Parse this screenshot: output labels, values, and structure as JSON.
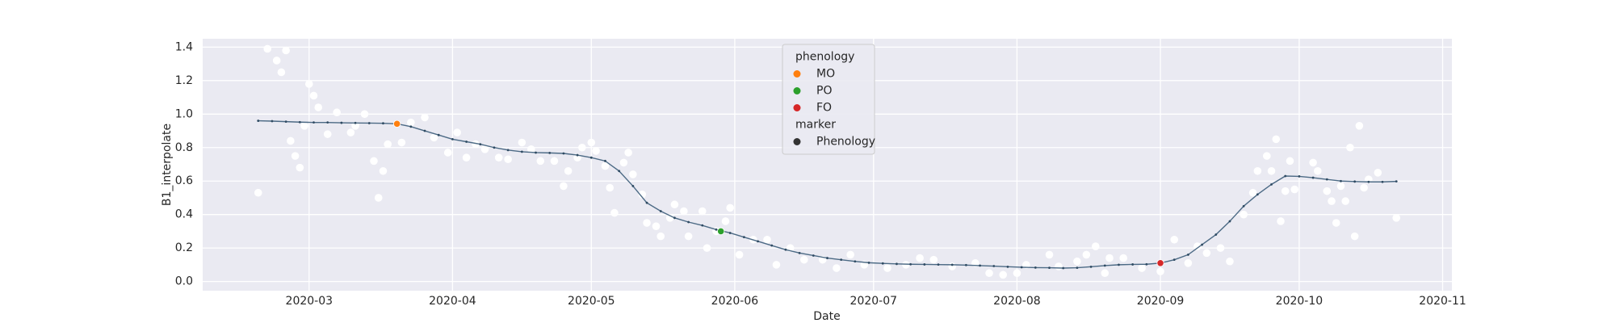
{
  "chart_data": {
    "type": "scatter",
    "x_label": "Date",
    "y_label": "B1_interpolate",
    "xlim": [
      "2020-02-07",
      "2020-11-03"
    ],
    "xticks": [
      {
        "value": "2020-03-01",
        "label": "2020-03"
      },
      {
        "value": "2020-04-01",
        "label": "2020-04"
      },
      {
        "value": "2020-05-01",
        "label": "2020-05"
      },
      {
        "value": "2020-06-01",
        "label": "2020-06"
      },
      {
        "value": "2020-07-01",
        "label": "2020-07"
      },
      {
        "value": "2020-08-01",
        "label": "2020-08"
      },
      {
        "value": "2020-09-01",
        "label": "2020-09"
      },
      {
        "value": "2020-10-01",
        "label": "2020-10"
      },
      {
        "value": "2020-11-01",
        "label": "2020-11"
      }
    ],
    "ylim": [
      -0.055,
      1.45
    ],
    "yticks": [
      {
        "value": 0,
        "label": "0.0"
      },
      0.2,
      0.4,
      0.6,
      0.8,
      {
        "value": 1,
        "label": "1.0"
      },
      1.2,
      1.4
    ],
    "grid": true,
    "legend": {
      "loc": "upper center",
      "hue_title": "phenology",
      "style_title": "marker",
      "style_entries": [
        {
          "label": "Phenology",
          "color": "#333333"
        }
      ]
    },
    "series": [
      {
        "kind": "scatter",
        "color": "#ffffff",
        "x": [
          "2020-02-19",
          "2020-02-21",
          "2020-02-23",
          "2020-02-24",
          "2020-02-25",
          "2020-02-26",
          "2020-02-27",
          "2020-02-28",
          "2020-02-29",
          "2020-03-01",
          "2020-03-02",
          "2020-03-03",
          "2020-03-05",
          "2020-03-07",
          "2020-03-10",
          "2020-03-11",
          "2020-03-13",
          "2020-03-15",
          "2020-03-16",
          "2020-03-17",
          "2020-03-18",
          "2020-03-21",
          "2020-03-23",
          "2020-03-26",
          "2020-03-28",
          "2020-03-31",
          "2020-04-02",
          "2020-04-04",
          "2020-04-06",
          "2020-04-08",
          "2020-04-11",
          "2020-04-13",
          "2020-04-16",
          "2020-04-18",
          "2020-04-20",
          "2020-04-23",
          "2020-04-25",
          "2020-04-26",
          "2020-04-28",
          "2020-04-29",
          "2020-05-01",
          "2020-05-02",
          "2020-05-04",
          "2020-05-05",
          "2020-05-06",
          "2020-05-08",
          "2020-05-09",
          "2020-05-10",
          "2020-05-12",
          "2020-05-13",
          "2020-05-15",
          "2020-05-16",
          "2020-05-18",
          "2020-05-19",
          "2020-05-21",
          "2020-05-22",
          "2020-05-25",
          "2020-05-26",
          "2020-05-28",
          "2020-05-30",
          "2020-05-31",
          "2020-06-02",
          "2020-06-05",
          "2020-06-08",
          "2020-06-10",
          "2020-06-13",
          "2020-06-16",
          "2020-06-20",
          "2020-06-23",
          "2020-06-26",
          "2020-06-29",
          "2020-07-04",
          "2020-07-08",
          "2020-07-11",
          "2020-07-14",
          "2020-07-18",
          "2020-07-23",
          "2020-07-26",
          "2020-07-29",
          "2020-08-01",
          "2020-08-03",
          "2020-08-08",
          "2020-08-10",
          "2020-08-14",
          "2020-08-16",
          "2020-08-18",
          "2020-08-20",
          "2020-08-21",
          "2020-08-24",
          "2020-08-28",
          "2020-09-01",
          "2020-09-04",
          "2020-09-07",
          "2020-09-09",
          "2020-09-11",
          "2020-09-14",
          "2020-09-16",
          "2020-09-19",
          "2020-09-21",
          "2020-09-22",
          "2020-09-24",
          "2020-09-25",
          "2020-09-26",
          "2020-09-27",
          "2020-09-28",
          "2020-09-29",
          "2020-09-30",
          "2020-10-04",
          "2020-10-05",
          "2020-10-07",
          "2020-10-08",
          "2020-10-09",
          "2020-10-10",
          "2020-10-11",
          "2020-10-12",
          "2020-10-13",
          "2020-10-14",
          "2020-10-15",
          "2020-10-16",
          "2020-10-18",
          "2020-10-22"
        ],
        "values": [
          0.53,
          1.39,
          1.32,
          1.25,
          1.38,
          0.84,
          0.75,
          0.68,
          0.93,
          1.18,
          1.11,
          1.04,
          0.88,
          1.01,
          0.89,
          0.93,
          1.0,
          0.72,
          0.5,
          0.66,
          0.82,
          0.83,
          0.95,
          0.98,
          0.86,
          0.77,
          0.89,
          0.74,
          0.82,
          0.79,
          0.74,
          0.73,
          0.83,
          0.79,
          0.72,
          0.72,
          0.57,
          0.66,
          0.74,
          0.8,
          0.83,
          0.78,
          0.69,
          0.56,
          0.41,
          0.71,
          0.77,
          0.64,
          0.52,
          0.35,
          0.33,
          0.27,
          0.38,
          0.46,
          0.42,
          0.27,
          0.42,
          0.2,
          0.3,
          0.36,
          0.44,
          0.16,
          0.25,
          0.25,
          0.1,
          0.2,
          0.13,
          0.13,
          0.08,
          0.16,
          0.1,
          0.08,
          0.1,
          0.14,
          0.13,
          0.09,
          0.11,
          0.05,
          0.04,
          0.05,
          0.1,
          0.16,
          0.09,
          0.12,
          0.16,
          0.21,
          0.05,
          0.14,
          0.14,
          0.08,
          0.06,
          0.25,
          0.11,
          0.21,
          0.17,
          0.2,
          0.12,
          0.4,
          0.53,
          0.66,
          0.75,
          0.66,
          0.85,
          0.36,
          0.54,
          0.72,
          0.55,
          0.71,
          0.66,
          0.54,
          0.48,
          0.35,
          0.57,
          0.48,
          0.8,
          0.27,
          0.93,
          0.56,
          0.61,
          0.65,
          0.38
        ]
      },
      {
        "kind": "line",
        "color": "#4c6a85",
        "x": [
          "2020-02-19",
          "2020-02-22",
          "2020-02-25",
          "2020-02-28",
          "2020-03-02",
          "2020-03-05",
          "2020-03-08",
          "2020-03-11",
          "2020-03-14",
          "2020-03-17",
          "2020-03-20",
          "2020-03-23",
          "2020-03-26",
          "2020-03-29",
          "2020-04-01",
          "2020-04-04",
          "2020-04-07",
          "2020-04-10",
          "2020-04-13",
          "2020-04-16",
          "2020-04-19",
          "2020-04-22",
          "2020-04-25",
          "2020-04-28",
          "2020-05-01",
          "2020-05-04",
          "2020-05-07",
          "2020-05-10",
          "2020-05-13",
          "2020-05-16",
          "2020-05-19",
          "2020-05-22",
          "2020-05-25",
          "2020-05-28",
          "2020-05-31",
          "2020-06-03",
          "2020-06-06",
          "2020-06-09",
          "2020-06-12",
          "2020-06-15",
          "2020-06-18",
          "2020-06-21",
          "2020-06-24",
          "2020-06-27",
          "2020-06-30",
          "2020-07-03",
          "2020-07-06",
          "2020-07-09",
          "2020-07-12",
          "2020-07-15",
          "2020-07-18",
          "2020-07-21",
          "2020-07-24",
          "2020-07-27",
          "2020-07-30",
          "2020-08-02",
          "2020-08-05",
          "2020-08-08",
          "2020-08-11",
          "2020-08-14",
          "2020-08-17",
          "2020-08-20",
          "2020-08-23",
          "2020-08-26",
          "2020-08-29",
          "2020-09-01",
          "2020-09-04",
          "2020-09-07",
          "2020-09-10",
          "2020-09-13",
          "2020-09-16",
          "2020-09-19",
          "2020-09-22",
          "2020-09-25",
          "2020-09-28",
          "2020-10-01",
          "2020-10-04",
          "2020-10-07",
          "2020-10-10",
          "2020-10-13",
          "2020-10-16",
          "2020-10-19",
          "2020-10-22"
        ],
        "values": [
          0.96,
          0.958,
          0.955,
          0.952,
          0.95,
          0.95,
          0.948,
          0.947,
          0.946,
          0.945,
          0.942,
          0.925,
          0.9,
          0.875,
          0.85,
          0.835,
          0.82,
          0.8,
          0.785,
          0.775,
          0.77,
          0.768,
          0.765,
          0.755,
          0.74,
          0.72,
          0.66,
          0.57,
          0.47,
          0.42,
          0.38,
          0.355,
          0.335,
          0.31,
          0.29,
          0.265,
          0.24,
          0.215,
          0.19,
          0.17,
          0.155,
          0.14,
          0.13,
          0.12,
          0.112,
          0.108,
          0.105,
          0.103,
          0.102,
          0.101,
          0.1,
          0.098,
          0.095,
          0.092,
          0.088,
          0.085,
          0.083,
          0.082,
          0.08,
          0.082,
          0.088,
          0.095,
          0.1,
          0.102,
          0.103,
          0.11,
          0.13,
          0.16,
          0.22,
          0.28,
          0.36,
          0.45,
          0.52,
          0.58,
          0.63,
          0.628,
          0.62,
          0.61,
          0.6,
          0.597,
          0.595,
          0.595,
          0.598
        ]
      },
      {
        "name": "MO",
        "kind": "scatter",
        "color": "#ff7f0e",
        "x": [
          "2020-03-20"
        ],
        "values": [
          0.942
        ]
      },
      {
        "name": "PO",
        "kind": "scatter",
        "color": "#2ca02c",
        "x": [
          "2020-05-29"
        ],
        "values": [
          0.3
        ]
      },
      {
        "name": "FO",
        "kind": "scatter",
        "color": "#d62728",
        "x": [
          "2020-09-01"
        ],
        "values": [
          0.11
        ]
      }
    ]
  }
}
